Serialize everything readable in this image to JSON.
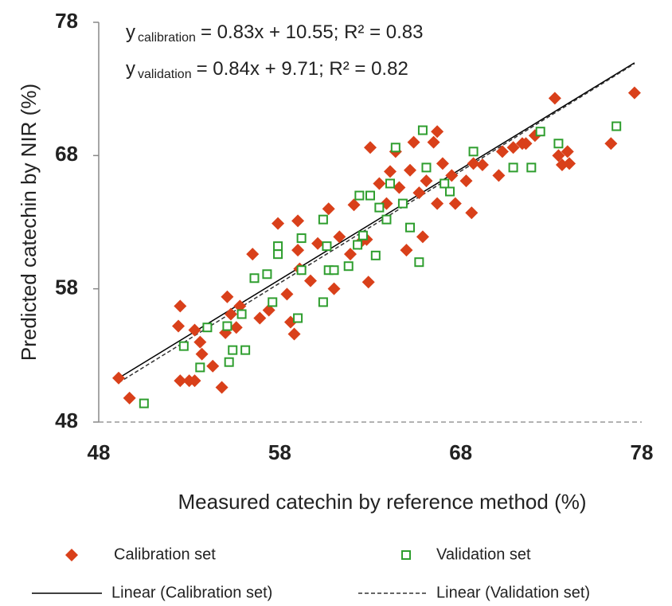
{
  "chart_data": {
    "type": "scatter",
    "x_label": "Measured catechin by reference method (%)",
    "y_label": "Predicted catechin  by NIR (%)",
    "xlim": [
      48,
      78
    ],
    "ylim": [
      48,
      78
    ],
    "xticks": [
      48,
      58,
      68,
      78
    ],
    "yticks": [
      48,
      58,
      68,
      78
    ],
    "annotations": [
      {
        "symbol": "y",
        "subscript": "calibration",
        "text": "= 0.83x + 10.55;  R² = 0.83"
      },
      {
        "symbol": "y",
        "subscript": "validation",
        "text": "= 0.84x + 9.71;   R² = 0.82"
      }
    ],
    "series": [
      {
        "name": "Calibration set",
        "color": "#d9401a",
        "marker": "diamond",
        "x": [
          49.1,
          49.7,
          52.5,
          52.4,
          52.5,
          53.0,
          53.3,
          53.3,
          53.6,
          53.7,
          54.3,
          54.8,
          55.1,
          55.3,
          55.8,
          55.0,
          55.6,
          56.5,
          56.9,
          57.4,
          57.9,
          59.0,
          59.0,
          59.1,
          58.8,
          58.6,
          58.4,
          59.7,
          60.1,
          60.7,
          61.0,
          61.3,
          61.9,
          62.1,
          62.4,
          62.8,
          63.0,
          62.9,
          63.5,
          63.9,
          64.1,
          64.4,
          64.6,
          65.0,
          65.2,
          65.4,
          65.7,
          65.9,
          66.1,
          66.5,
          66.7,
          66.7,
          67.0,
          67.5,
          67.7,
          68.3,
          68.6,
          68.7,
          69.2,
          70.1,
          70.3,
          70.9,
          71.4,
          71.6,
          72.1,
          73.2,
          73.4,
          73.6,
          73.9,
          74.0,
          76.3,
          77.6
        ],
        "values": [
          51.3,
          49.8,
          56.7,
          55.2,
          51.1,
          51.1,
          51.1,
          54.9,
          54.0,
          53.1,
          52.2,
          50.6,
          57.4,
          56.1,
          56.7,
          54.7,
          55.1,
          60.6,
          55.8,
          56.4,
          62.9,
          63.1,
          60.9,
          59.5,
          54.6,
          55.5,
          57.6,
          58.6,
          61.4,
          64.0,
          58.0,
          61.9,
          60.6,
          64.3,
          61.4,
          61.7,
          68.6,
          58.5,
          65.9,
          64.4,
          66.8,
          68.3,
          65.6,
          60.9,
          66.9,
          69.0,
          65.2,
          61.9,
          66.1,
          69.0,
          69.8,
          64.4,
          67.4,
          66.5,
          64.4,
          66.1,
          63.7,
          67.4,
          67.3,
          66.5,
          68.3,
          68.6,
          68.9,
          68.9,
          69.5,
          72.3,
          68.0,
          67.3,
          68.3,
          67.4,
          68.9,
          72.7
        ]
      },
      {
        "name": "Validation set",
        "color": "#2e9e2e",
        "marker": "square",
        "x": [
          50.5,
          52.7,
          53.6,
          54.0,
          55.1,
          55.2,
          55.4,
          55.9,
          56.1,
          56.6,
          57.3,
          57.6,
          57.9,
          57.9,
          59.0,
          59.2,
          59.2,
          60.4,
          60.4,
          60.6,
          60.7,
          61.0,
          61.8,
          62.3,
          62.4,
          62.6,
          63.0,
          63.3,
          63.5,
          63.9,
          64.1,
          64.4,
          64.8,
          65.2,
          65.7,
          65.9,
          66.1,
          67.1,
          67.4,
          68.7,
          70.9,
          71.9,
          72.4,
          73.4,
          76.6
        ],
        "values": [
          49.4,
          53.7,
          52.1,
          55.1,
          55.2,
          52.5,
          53.4,
          56.1,
          53.4,
          58.8,
          59.1,
          57.0,
          61.2,
          60.6,
          55.8,
          61.8,
          59.4,
          57.0,
          63.2,
          61.2,
          59.4,
          59.4,
          59.7,
          61.3,
          65.0,
          62.0,
          65.0,
          60.5,
          64.1,
          63.2,
          65.9,
          68.6,
          64.4,
          62.6,
          60.0,
          69.9,
          67.1,
          65.9,
          65.3,
          68.3,
          67.1,
          67.1,
          69.8,
          68.9,
          70.2
        ]
      }
    ],
    "trendlines": [
      {
        "name": "Linear (Calibration set)",
        "slope": 0.83,
        "intercept": 10.55,
        "style": "solid",
        "color": "#000000"
      },
      {
        "name": "Linear (Validation set)",
        "slope": 0.84,
        "intercept": 9.71,
        "style": "dashed",
        "color": "#333333"
      }
    ]
  }
}
